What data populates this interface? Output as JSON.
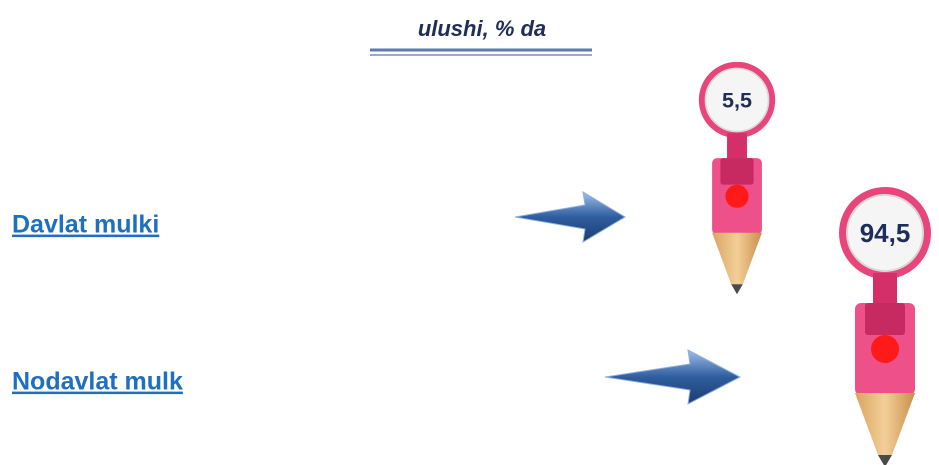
{
  "title": "ulushi, % da",
  "items": [
    {
      "label": "Davlat mulki",
      "value": "5,5"
    },
    {
      "label": "Nodavlat mulk",
      "value": "94,5"
    }
  ]
}
